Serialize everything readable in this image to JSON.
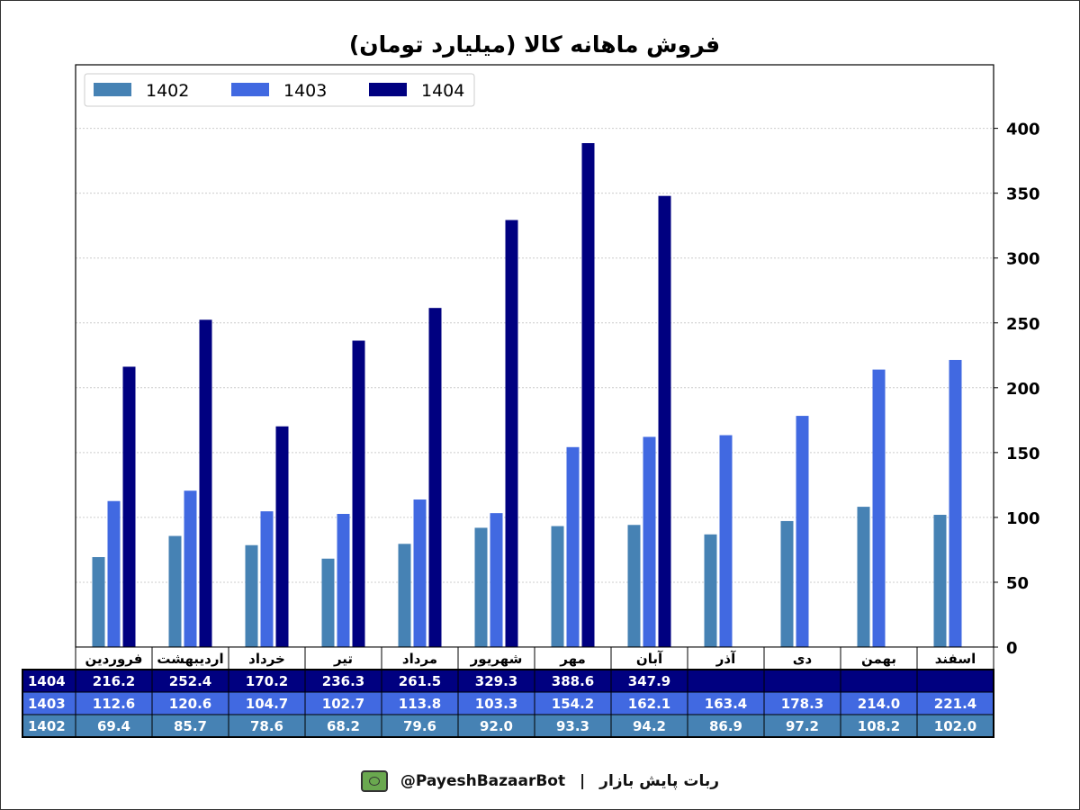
{
  "chart_data": {
    "type": "bar",
    "title": "فروش ماهانه کالا (میلیارد تومان)",
    "xlabel": "",
    "ylabel": "",
    "ylim": [
      0,
      449
    ],
    "yticks": [
      0,
      50,
      100,
      150,
      200,
      250,
      300,
      350,
      400
    ],
    "grid": true,
    "legend_position": "top-left",
    "categories": [
      "فروردین",
      "اردیبهشت",
      "خرداد",
      "تیر",
      "مرداد",
      "شهریور",
      "مهر",
      "آبان",
      "آذر",
      "دی",
      "بهمن",
      "اسفند"
    ],
    "series": [
      {
        "name": "1402",
        "color": "#4682B4",
        "values": [
          69.4,
          85.7,
          78.6,
          68.2,
          79.6,
          92.0,
          93.3,
          94.2,
          86.9,
          97.2,
          108.2,
          102.0
        ]
      },
      {
        "name": "1403",
        "color": "#4169E1",
        "values": [
          112.6,
          120.6,
          104.7,
          102.7,
          113.8,
          103.3,
          154.2,
          162.1,
          163.4,
          178.3,
          214.0,
          221.4
        ]
      },
      {
        "name": "1404",
        "color": "#000080",
        "values": [
          216.2,
          252.4,
          170.2,
          236.3,
          261.5,
          329.3,
          388.6,
          347.9,
          null,
          null,
          null,
          null
        ]
      }
    ],
    "table_row_order": [
      "1404",
      "1403",
      "1402"
    ]
  },
  "footer": {
    "brand": "ربات پایش بازار",
    "separator": "|",
    "handle": "@PayeshBazaarBot",
    "icon": "bot-monitor-icon"
  }
}
